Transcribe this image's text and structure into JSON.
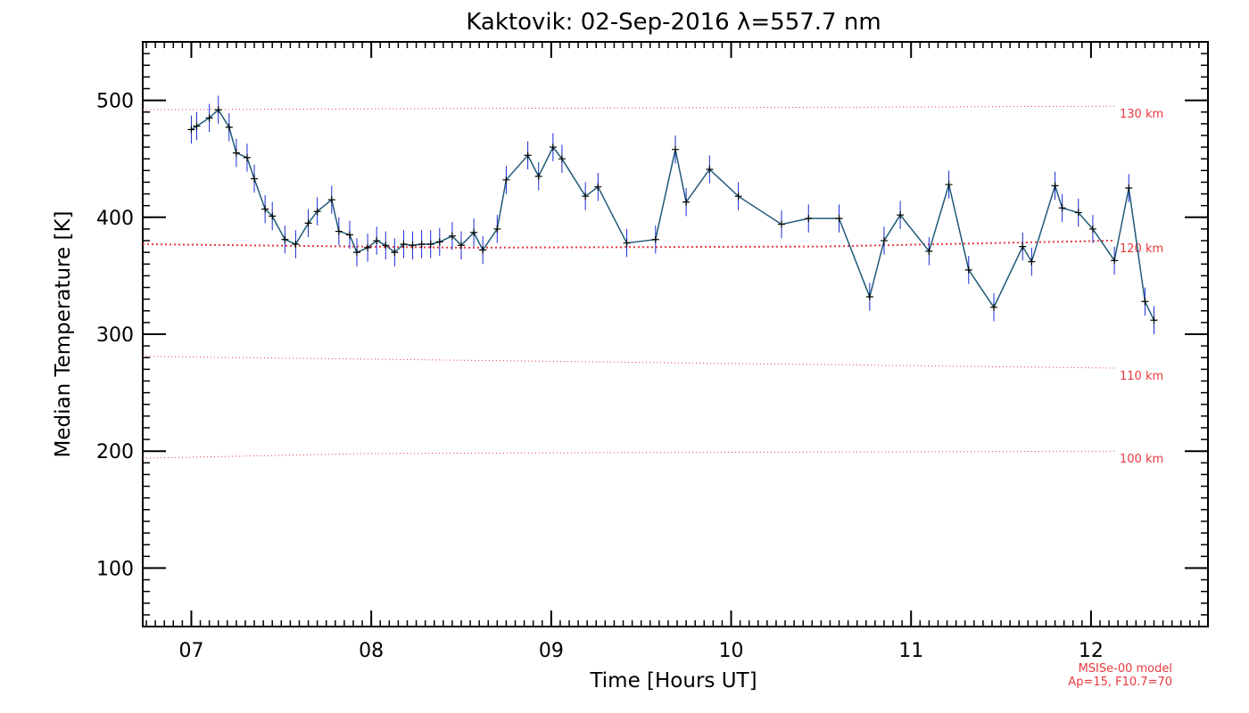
{
  "colors": {
    "series_line": "#1e5a78",
    "error_bar": "#1a2bd8",
    "marker": "#000000",
    "model_line": "#e8393e",
    "model_text": "#e8393e",
    "axis": "#000000"
  },
  "chart_data": {
    "type": "line",
    "title": "Kaktovik: 02-Sep-2016 λ=557.7 nm",
    "xlabel": "Time [Hours UT]",
    "ylabel": "Median Temperature [K]",
    "xlim": [
      6.73,
      12.65
    ],
    "ylim": [
      50,
      550
    ],
    "x_ticks": [
      7,
      8,
      9,
      10,
      11,
      12
    ],
    "x_tick_labels": [
      "07",
      "08",
      "09",
      "10",
      "11",
      "12"
    ],
    "y_ticks": [
      100,
      200,
      300,
      400,
      500
    ],
    "y_tick_labels": [
      "100",
      "200",
      "300",
      "400",
      "500"
    ],
    "grid": false,
    "series": [
      {
        "x": [
          7.0,
          7.03,
          7.1,
          7.15,
          7.21,
          7.25,
          7.31,
          7.35,
          7.41,
          7.45,
          7.52,
          7.58,
          7.65,
          7.7,
          7.78,
          7.82,
          7.88,
          7.92,
          7.98,
          8.03,
          8.08,
          8.13,
          8.18,
          8.23,
          8.28,
          8.33,
          8.38,
          8.45,
          8.5,
          8.57,
          8.62,
          8.7,
          8.75,
          8.87,
          8.93,
          9.01,
          9.06,
          9.19,
          9.26,
          9.42,
          9.58,
          9.69,
          9.75,
          9.88,
          10.04,
          10.28,
          10.43,
          10.6,
          10.77,
          10.85,
          10.94,
          11.1,
          11.21,
          11.32,
          11.46,
          11.62,
          11.67,
          11.8,
          11.84,
          11.93,
          12.01,
          12.13,
          12.21,
          12.3,
          12.35
        ],
        "y": [
          475,
          478,
          485,
          492,
          477,
          455,
          451,
          433,
          407,
          401,
          381,
          377,
          395,
          405,
          415,
          388,
          385,
          370,
          374,
          380,
          376,
          370,
          377,
          376,
          377,
          377,
          379,
          384,
          376,
          387,
          372,
          390,
          432,
          453,
          435,
          460,
          450,
          418,
          426,
          378,
          381,
          458,
          413,
          441,
          418,
          394,
          399,
          399,
          332,
          380,
          402,
          371,
          428,
          355,
          323,
          375,
          362,
          427,
          408,
          404,
          390,
          363,
          425,
          328,
          312
        ],
        "errors": [
          12,
          12,
          12,
          12,
          12,
          12,
          12,
          12,
          12,
          12,
          12,
          12,
          12,
          12,
          12,
          12,
          12,
          12,
          12,
          12,
          12,
          12,
          12,
          12,
          12,
          12,
          12,
          12,
          12,
          12,
          12,
          12,
          12,
          12,
          12,
          12,
          12,
          12,
          12,
          12,
          12,
          12,
          12,
          12,
          12,
          12,
          12,
          12,
          12,
          12,
          12,
          12,
          12,
          12,
          12,
          12,
          12,
          12,
          12,
          12,
          12,
          12,
          12,
          12,
          12
        ]
      }
    ],
    "reference_lines": [
      {
        "label": "130 km",
        "x": [
          6.73,
          12.13
        ],
        "y": [
          492,
          495
        ]
      },
      {
        "label": "120 km",
        "x": [
          6.73,
          8.5,
          10.5,
          12.13
        ],
        "y": [
          377,
          374,
          375,
          380
        ]
      },
      {
        "label": "110 km",
        "x": [
          6.73,
          12.13
        ],
        "y": [
          281,
          271
        ]
      },
      {
        "label": "100 km",
        "x": [
          6.73,
          8.0,
          12.13
        ],
        "y": [
          194,
          198,
          200
        ]
      }
    ],
    "model_note": [
      "MSISe-00 model",
      "Ap=15, F10.7=70"
    ]
  }
}
